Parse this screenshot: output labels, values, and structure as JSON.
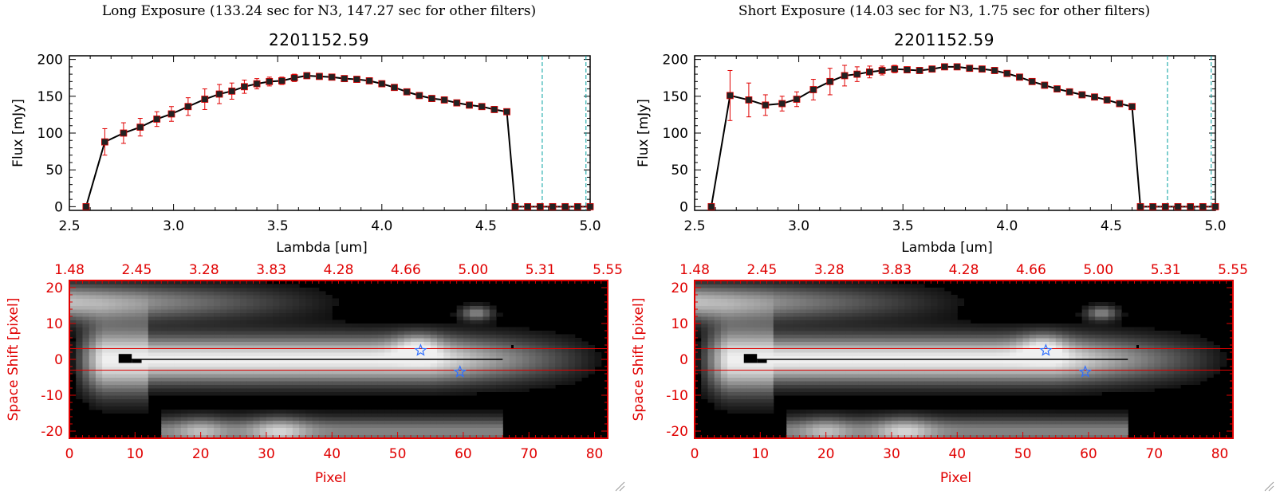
{
  "panels": [
    {
      "exposure_title": "Long Exposure (133.24 sec for N3, 147.27 sec for other filters)",
      "plot_title": "2201152.59"
    },
    {
      "exposure_title": "Short Exposure (14.03 sec for N3, 1.75 sec for other filters)",
      "plot_title": "2201152.59"
    }
  ],
  "colors": {
    "axis": "#000000",
    "series": "#000000",
    "error_bars": "#e00000",
    "red_axis": "#e00000",
    "cyan_lines": "#00a0a0",
    "star": "#2f6fff"
  },
  "chart_data": [
    {
      "type": "line",
      "title": "2201152.59",
      "xlabel": "Lambda [um]",
      "ylabel": "Flux [mJy]",
      "xlim": [
        2.5,
        5.0
      ],
      "ylim": [
        -5,
        205
      ],
      "xticks": [
        "2.5",
        "3.0",
        "3.5",
        "4.0",
        "4.5",
        "5.0"
      ],
      "yticks": [
        "0",
        "50",
        "100",
        "150",
        "200"
      ],
      "vlines": [
        4.77,
        4.98
      ],
      "grid": false,
      "series": [
        {
          "name": "Long Exposure",
          "x": [
            2.58,
            2.67,
            2.76,
            2.84,
            2.92,
            2.99,
            3.07,
            3.15,
            3.22,
            3.28,
            3.34,
            3.4,
            3.46,
            3.52,
            3.58,
            3.64,
            3.7,
            3.76,
            3.82,
            3.88,
            3.94,
            4.0,
            4.06,
            4.12,
            4.18,
            4.24,
            4.3,
            4.36,
            4.42,
            4.48,
            4.54,
            4.6,
            4.64,
            4.7,
            4.76,
            4.82,
            4.88,
            4.94,
            5.0
          ],
          "y": [
            0,
            88,
            100,
            108,
            119,
            126,
            136,
            146,
            153,
            157,
            163,
            167,
            170,
            171,
            175,
            178,
            177,
            176,
            174,
            173,
            171,
            167,
            162,
            156,
            151,
            147,
            145,
            141,
            138,
            136,
            132,
            129,
            0,
            0,
            0,
            0,
            0,
            0,
            0
          ],
          "yerr": [
            0,
            18,
            14,
            12,
            10,
            10,
            12,
            14,
            13,
            11,
            9,
            7,
            6,
            5,
            5,
            4,
            4,
            4,
            4,
            4,
            4,
            4,
            4,
            4,
            4,
            4,
            4,
            4,
            4,
            4,
            4,
            4,
            0,
            0,
            0,
            0,
            0,
            0,
            0
          ]
        }
      ]
    },
    {
      "type": "line",
      "title": "2201152.59",
      "xlabel": "Lambda [um]",
      "ylabel": "Flux [mJy]",
      "xlim": [
        2.5,
        5.0
      ],
      "ylim": [
        -5,
        205
      ],
      "xticks": [
        "2.5",
        "3.0",
        "3.5",
        "4.0",
        "4.5",
        "5.0"
      ],
      "yticks": [
        "0",
        "50",
        "100",
        "150",
        "200"
      ],
      "vlines": [
        4.77,
        4.98
      ],
      "grid": false,
      "series": [
        {
          "name": "Short Exposure",
          "x": [
            2.58,
            2.67,
            2.76,
            2.84,
            2.92,
            2.99,
            3.07,
            3.15,
            3.22,
            3.28,
            3.34,
            3.4,
            3.46,
            3.52,
            3.58,
            3.64,
            3.7,
            3.76,
            3.82,
            3.88,
            3.94,
            4.0,
            4.06,
            4.12,
            4.18,
            4.24,
            4.3,
            4.36,
            4.42,
            4.48,
            4.54,
            4.6,
            4.64,
            4.7,
            4.76,
            4.82,
            4.88,
            4.94,
            5.0
          ],
          "y": [
            0,
            151,
            145,
            138,
            140,
            146,
            159,
            170,
            178,
            180,
            183,
            185,
            187,
            186,
            185,
            187,
            190,
            190,
            188,
            187,
            185,
            181,
            176,
            170,
            165,
            160,
            156,
            152,
            149,
            145,
            140,
            136,
            0,
            0,
            0,
            0,
            0,
            0,
            0
          ],
          "yerr": [
            0,
            34,
            23,
            14,
            10,
            10,
            14,
            18,
            14,
            10,
            8,
            6,
            5,
            4,
            4,
            4,
            4,
            4,
            4,
            4,
            4,
            4,
            4,
            4,
            4,
            4,
            4,
            4,
            4,
            4,
            4,
            4,
            0,
            0,
            0,
            0,
            0,
            0,
            0
          ]
        }
      ]
    },
    {
      "type": "heatmap",
      "xlabel": "Pixel",
      "ylabel": "Space Shift [pixel]",
      "xlim": [
        0,
        82
      ],
      "ylim": [
        -22,
        22
      ],
      "xticks": [
        "0",
        "10",
        "20",
        "30",
        "40",
        "50",
        "60",
        "70",
        "80"
      ],
      "yticks": [
        "-20",
        "-10",
        "0",
        "10",
        "20"
      ],
      "top_ticks": [
        "1.48",
        "2.45",
        "3.28",
        "3.83",
        "4.28",
        "4.66",
        "5.00",
        "5.31",
        "5.55"
      ],
      "hlines": [
        3,
        -3
      ],
      "center_line": 0,
      "stars": [
        {
          "x": 53.5,
          "y": 2.5
        },
        {
          "x": 59.5,
          "y": -3.5
        }
      ]
    },
    {
      "type": "heatmap",
      "xlabel": "Pixel",
      "ylabel": "Space Shift [pixel]",
      "xlim": [
        0,
        82
      ],
      "ylim": [
        -22,
        22
      ],
      "xticks": [
        "0",
        "10",
        "20",
        "30",
        "40",
        "50",
        "60",
        "70",
        "80"
      ],
      "yticks": [
        "-20",
        "-10",
        "0",
        "10",
        "20"
      ],
      "top_ticks": [
        "1.48",
        "2.45",
        "3.28",
        "3.83",
        "4.28",
        "4.66",
        "5.00",
        "5.31",
        "5.55"
      ],
      "hlines": [
        3,
        -3
      ],
      "center_line": 0,
      "stars": [
        {
          "x": 53.5,
          "y": 2.5
        },
        {
          "x": 59.5,
          "y": -3.5
        }
      ]
    }
  ]
}
